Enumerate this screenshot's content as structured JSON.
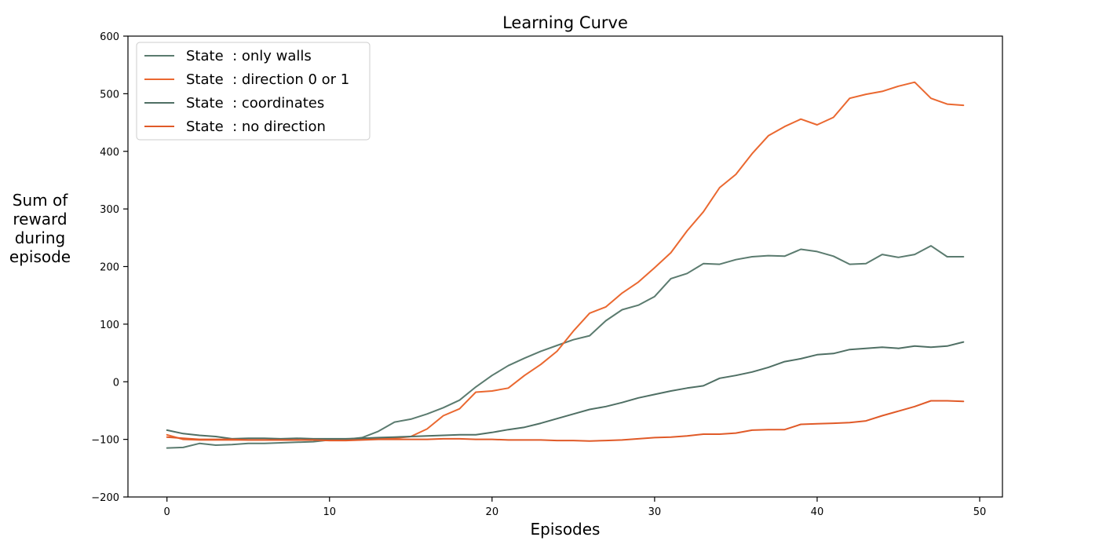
{
  "chart_data": {
    "type": "line",
    "title": "Learning Curve",
    "xlabel": "Episodes",
    "ylabel": [
      "Sum of",
      "reward",
      "during",
      "episode"
    ],
    "xlim": [
      -2.4,
      51.4
    ],
    "ylim": [
      -200,
      600
    ],
    "xticks": [
      0,
      10,
      20,
      30,
      40,
      50
    ],
    "yticks": [
      -200,
      -100,
      0,
      100,
      200,
      300,
      400,
      500,
      600
    ],
    "ytick_labels": [
      "−200",
      "−100",
      "0",
      "100",
      "200",
      "300",
      "400",
      "500",
      "600"
    ],
    "grid": false,
    "legend_position": "top-left",
    "x": [
      0,
      1,
      2,
      3,
      4,
      5,
      6,
      7,
      8,
      9,
      10,
      11,
      12,
      13,
      14,
      15,
      16,
      17,
      18,
      19,
      20,
      21,
      22,
      23,
      24,
      25,
      26,
      27,
      28,
      29,
      30,
      31,
      32,
      33,
      34,
      35,
      36,
      37,
      38,
      39,
      40,
      41,
      42,
      43,
      44,
      45,
      46,
      47,
      48,
      49
    ],
    "series": [
      {
        "name": "State  : only walls",
        "color": "#5b7b6f",
        "values": [
          -115,
          -114,
          -107,
          -110,
          -109,
          -107,
          -107,
          -106,
          -105,
          -104,
          -101,
          -100,
          -97,
          -86,
          -70,
          -65,
          -56,
          -45,
          -32,
          -9,
          11,
          28,
          41,
          53,
          63,
          73,
          80,
          106,
          125,
          133,
          148,
          179,
          188,
          205,
          204,
          212,
          217,
          219,
          218,
          230,
          226,
          218,
          204,
          205,
          221,
          216,
          221,
          236,
          217,
          217
        ]
      },
      {
        "name": "State  : direction 0 or 1",
        "color": "#ea6830",
        "values": [
          -92,
          -100,
          -101,
          -101,
          -101,
          -101,
          -101,
          -101,
          -101,
          -101,
          -101,
          -101,
          -100,
          -99,
          -98,
          -95,
          -82,
          -59,
          -47,
          -18,
          -16,
          -11,
          11,
          30,
          53,
          88,
          119,
          130,
          154,
          173,
          198,
          224,
          262,
          295,
          337,
          360,
          396,
          427,
          443,
          456,
          446,
          459,
          492,
          499,
          504,
          513,
          520,
          492,
          482,
          480
        ]
      },
      {
        "name": "State  : coordinates",
        "color": "#4f6f64",
        "values": [
          -84,
          -90,
          -93,
          -95,
          -99,
          -98,
          -98,
          -99,
          -98,
          -99,
          -99,
          -99,
          -98,
          -97,
          -96,
          -95,
          -94,
          -93,
          -92,
          -92,
          -88,
          -83,
          -79,
          -72,
          -64,
          -56,
          -48,
          -43,
          -36,
          -28,
          -22,
          -16,
          -11,
          -7,
          6,
          11,
          17,
          25,
          35,
          40,
          47,
          49,
          56,
          58,
          60,
          58,
          62,
          60,
          62,
          69
        ]
      },
      {
        "name": "State  : no direction",
        "color": "#e05a28",
        "values": [
          -96,
          -98,
          -100,
          -100,
          -100,
          -101,
          -101,
          -101,
          -101,
          -101,
          -102,
          -102,
          -101,
          -100,
          -100,
          -100,
          -100,
          -99,
          -99,
          -100,
          -100,
          -101,
          -101,
          -101,
          -102,
          -102,
          -103,
          -102,
          -101,
          -99,
          -97,
          -96,
          -94,
          -91,
          -91,
          -89,
          -84,
          -83,
          -83,
          -74,
          -73,
          -72,
          -71,
          -68,
          -59,
          -51,
          -43,
          -33,
          -33,
          -34
        ]
      }
    ]
  }
}
